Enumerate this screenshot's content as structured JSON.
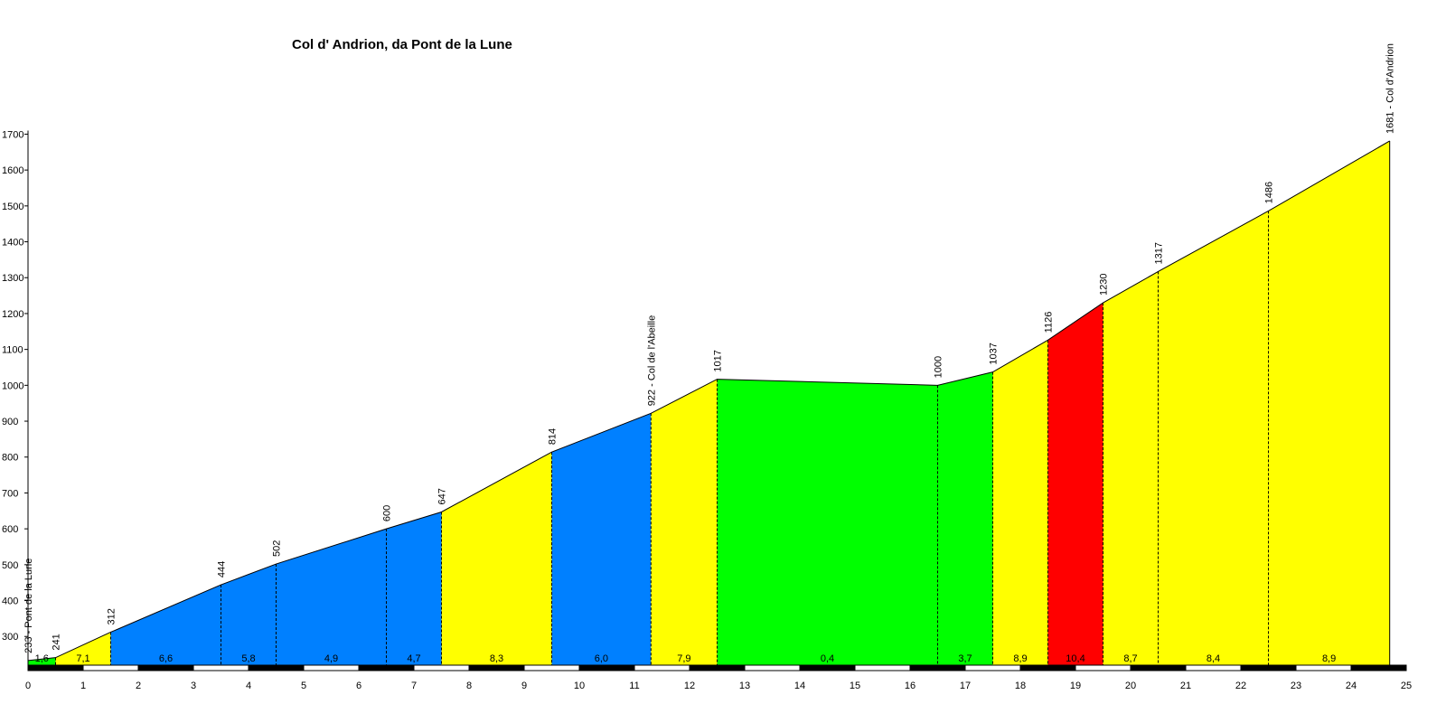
{
  "chart_data": {
    "type": "area",
    "title": "Col d' Andrion, da Pont de la Lune",
    "xlabel": "",
    "ylabel": "",
    "xlim": [
      0,
      25
    ],
    "ylim": [
      220,
      1700
    ],
    "x_ticks": [
      "0",
      "1",
      "2",
      "3",
      "4",
      "5",
      "6",
      "7",
      "8",
      "9",
      "10",
      "11",
      "12",
      "13",
      "14",
      "15",
      "16",
      "17",
      "18",
      "19",
      "20",
      "21",
      "22",
      "23",
      "24",
      "25"
    ],
    "y_ticks": [
      "300",
      "400",
      "500",
      "600",
      "700",
      "800",
      "900",
      "1000",
      "1100",
      "1200",
      "1300",
      "1400",
      "1500",
      "1600",
      "1700"
    ],
    "profile": [
      {
        "km": 0.0,
        "alt": 233,
        "label": "233 - Pont de la Lune"
      },
      {
        "km": 0.5,
        "alt": 241,
        "label": "241"
      },
      {
        "km": 1.5,
        "alt": 312,
        "label": "312"
      },
      {
        "km": 3.5,
        "alt": 444,
        "label": "444"
      },
      {
        "km": 4.5,
        "alt": 502,
        "label": "502"
      },
      {
        "km": 6.5,
        "alt": 600,
        "label": "600"
      },
      {
        "km": 7.5,
        "alt": 647,
        "label": "647"
      },
      {
        "km": 9.5,
        "alt": 814,
        "label": "814"
      },
      {
        "km": 11.3,
        "alt": 922,
        "label": "922 - Col de l'Abeille"
      },
      {
        "km": 12.5,
        "alt": 1017,
        "label": "1017"
      },
      {
        "km": 16.5,
        "alt": 1000,
        "label": "1000"
      },
      {
        "km": 17.5,
        "alt": 1037,
        "label": "1037"
      },
      {
        "km": 18.5,
        "alt": 1126,
        "label": "1126"
      },
      {
        "km": 19.5,
        "alt": 1230,
        "label": "1230"
      },
      {
        "km": 20.5,
        "alt": 1317,
        "label": "1317"
      },
      {
        "km": 22.5,
        "alt": 1486,
        "label": "1486"
      },
      {
        "km": 24.7,
        "alt": 1681,
        "label": "1681 - Col d'Andrion"
      }
    ],
    "segments": [
      {
        "from": 0.0,
        "to": 0.5,
        "grade": "1,6",
        "color": "#00ff00"
      },
      {
        "from": 0.5,
        "to": 1.5,
        "grade": "7,1",
        "color": "#ffff00"
      },
      {
        "from": 1.5,
        "to": 3.5,
        "grade": "6,6",
        "color": "#0080ff"
      },
      {
        "from": 3.5,
        "to": 4.5,
        "grade": "5,8",
        "color": "#0080ff"
      },
      {
        "from": 4.5,
        "to": 6.5,
        "grade": "4,9",
        "color": "#0080ff"
      },
      {
        "from": 6.5,
        "to": 7.5,
        "grade": "4,7",
        "color": "#0080ff"
      },
      {
        "from": 7.5,
        "to": 9.5,
        "grade": "8,3",
        "color": "#ffff00"
      },
      {
        "from": 9.5,
        "to": 11.3,
        "grade": "6,0",
        "color": "#0080ff"
      },
      {
        "from": 11.3,
        "to": 12.5,
        "grade": "7,9",
        "color": "#ffff00"
      },
      {
        "from": 12.5,
        "to": 16.5,
        "grade": "0,4",
        "color": "#00ff00"
      },
      {
        "from": 16.5,
        "to": 17.5,
        "grade": "3,7",
        "color": "#00ff00"
      },
      {
        "from": 17.5,
        "to": 18.5,
        "grade": "8,9",
        "color": "#ffff00"
      },
      {
        "from": 18.5,
        "to": 19.5,
        "grade": "10,4",
        "color": "#ff0000"
      },
      {
        "from": 19.5,
        "to": 20.5,
        "grade": "8,7",
        "color": "#ffff00"
      },
      {
        "from": 20.5,
        "to": 22.5,
        "grade": "8,4",
        "color": "#ffff00"
      },
      {
        "from": 22.5,
        "to": 24.7,
        "grade": "8,9",
        "color": "#ffff00"
      }
    ],
    "grid": false,
    "legend": "none"
  }
}
